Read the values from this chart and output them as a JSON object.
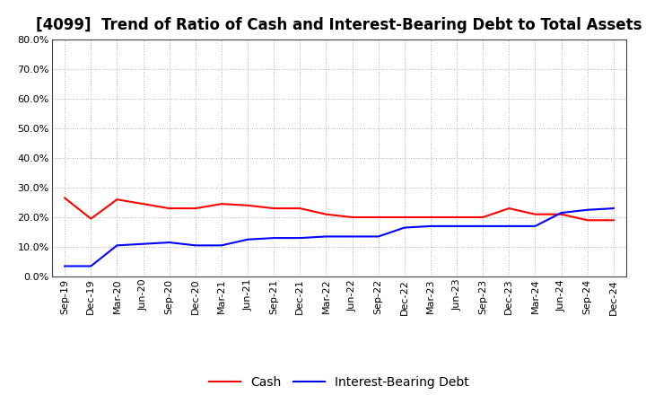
{
  "title": "[4099]  Trend of Ratio of Cash and Interest-Bearing Debt to Total Assets",
  "x_labels": [
    "Sep-19",
    "Dec-19",
    "Mar-20",
    "Jun-20",
    "Sep-20",
    "Dec-20",
    "Mar-21",
    "Jun-21",
    "Sep-21",
    "Dec-21",
    "Mar-22",
    "Jun-22",
    "Sep-22",
    "Dec-22",
    "Mar-23",
    "Jun-23",
    "Sep-23",
    "Dec-23",
    "Mar-24",
    "Jun-24",
    "Sep-24",
    "Dec-24"
  ],
  "cash": [
    26.5,
    19.5,
    26.0,
    24.5,
    23.0,
    23.0,
    24.5,
    24.0,
    23.0,
    23.0,
    21.0,
    20.0,
    20.0,
    20.0,
    20.0,
    20.0,
    20.0,
    23.0,
    21.0,
    21.0,
    19.0,
    19.0
  ],
  "ibd": [
    3.5,
    3.5,
    10.5,
    11.0,
    11.5,
    10.5,
    10.5,
    12.5,
    13.0,
    13.0,
    13.5,
    13.5,
    13.5,
    16.5,
    17.0,
    17.0,
    17.0,
    17.0,
    17.0,
    21.5,
    22.5,
    23.0
  ],
  "cash_color": "#ff0000",
  "ibd_color": "#0000ff",
  "ylim": [
    0.0,
    80.0
  ],
  "yticks": [
    0.0,
    10.0,
    20.0,
    30.0,
    40.0,
    50.0,
    60.0,
    70.0,
    80.0
  ],
  "grid_color": "#999999",
  "bg_color": "#ffffff",
  "plot_bg_color": "#ffffff",
  "title_fontsize": 12,
  "tick_fontsize": 8,
  "legend_labels": [
    "Cash",
    "Interest-Bearing Debt"
  ],
  "legend_fontsize": 10
}
